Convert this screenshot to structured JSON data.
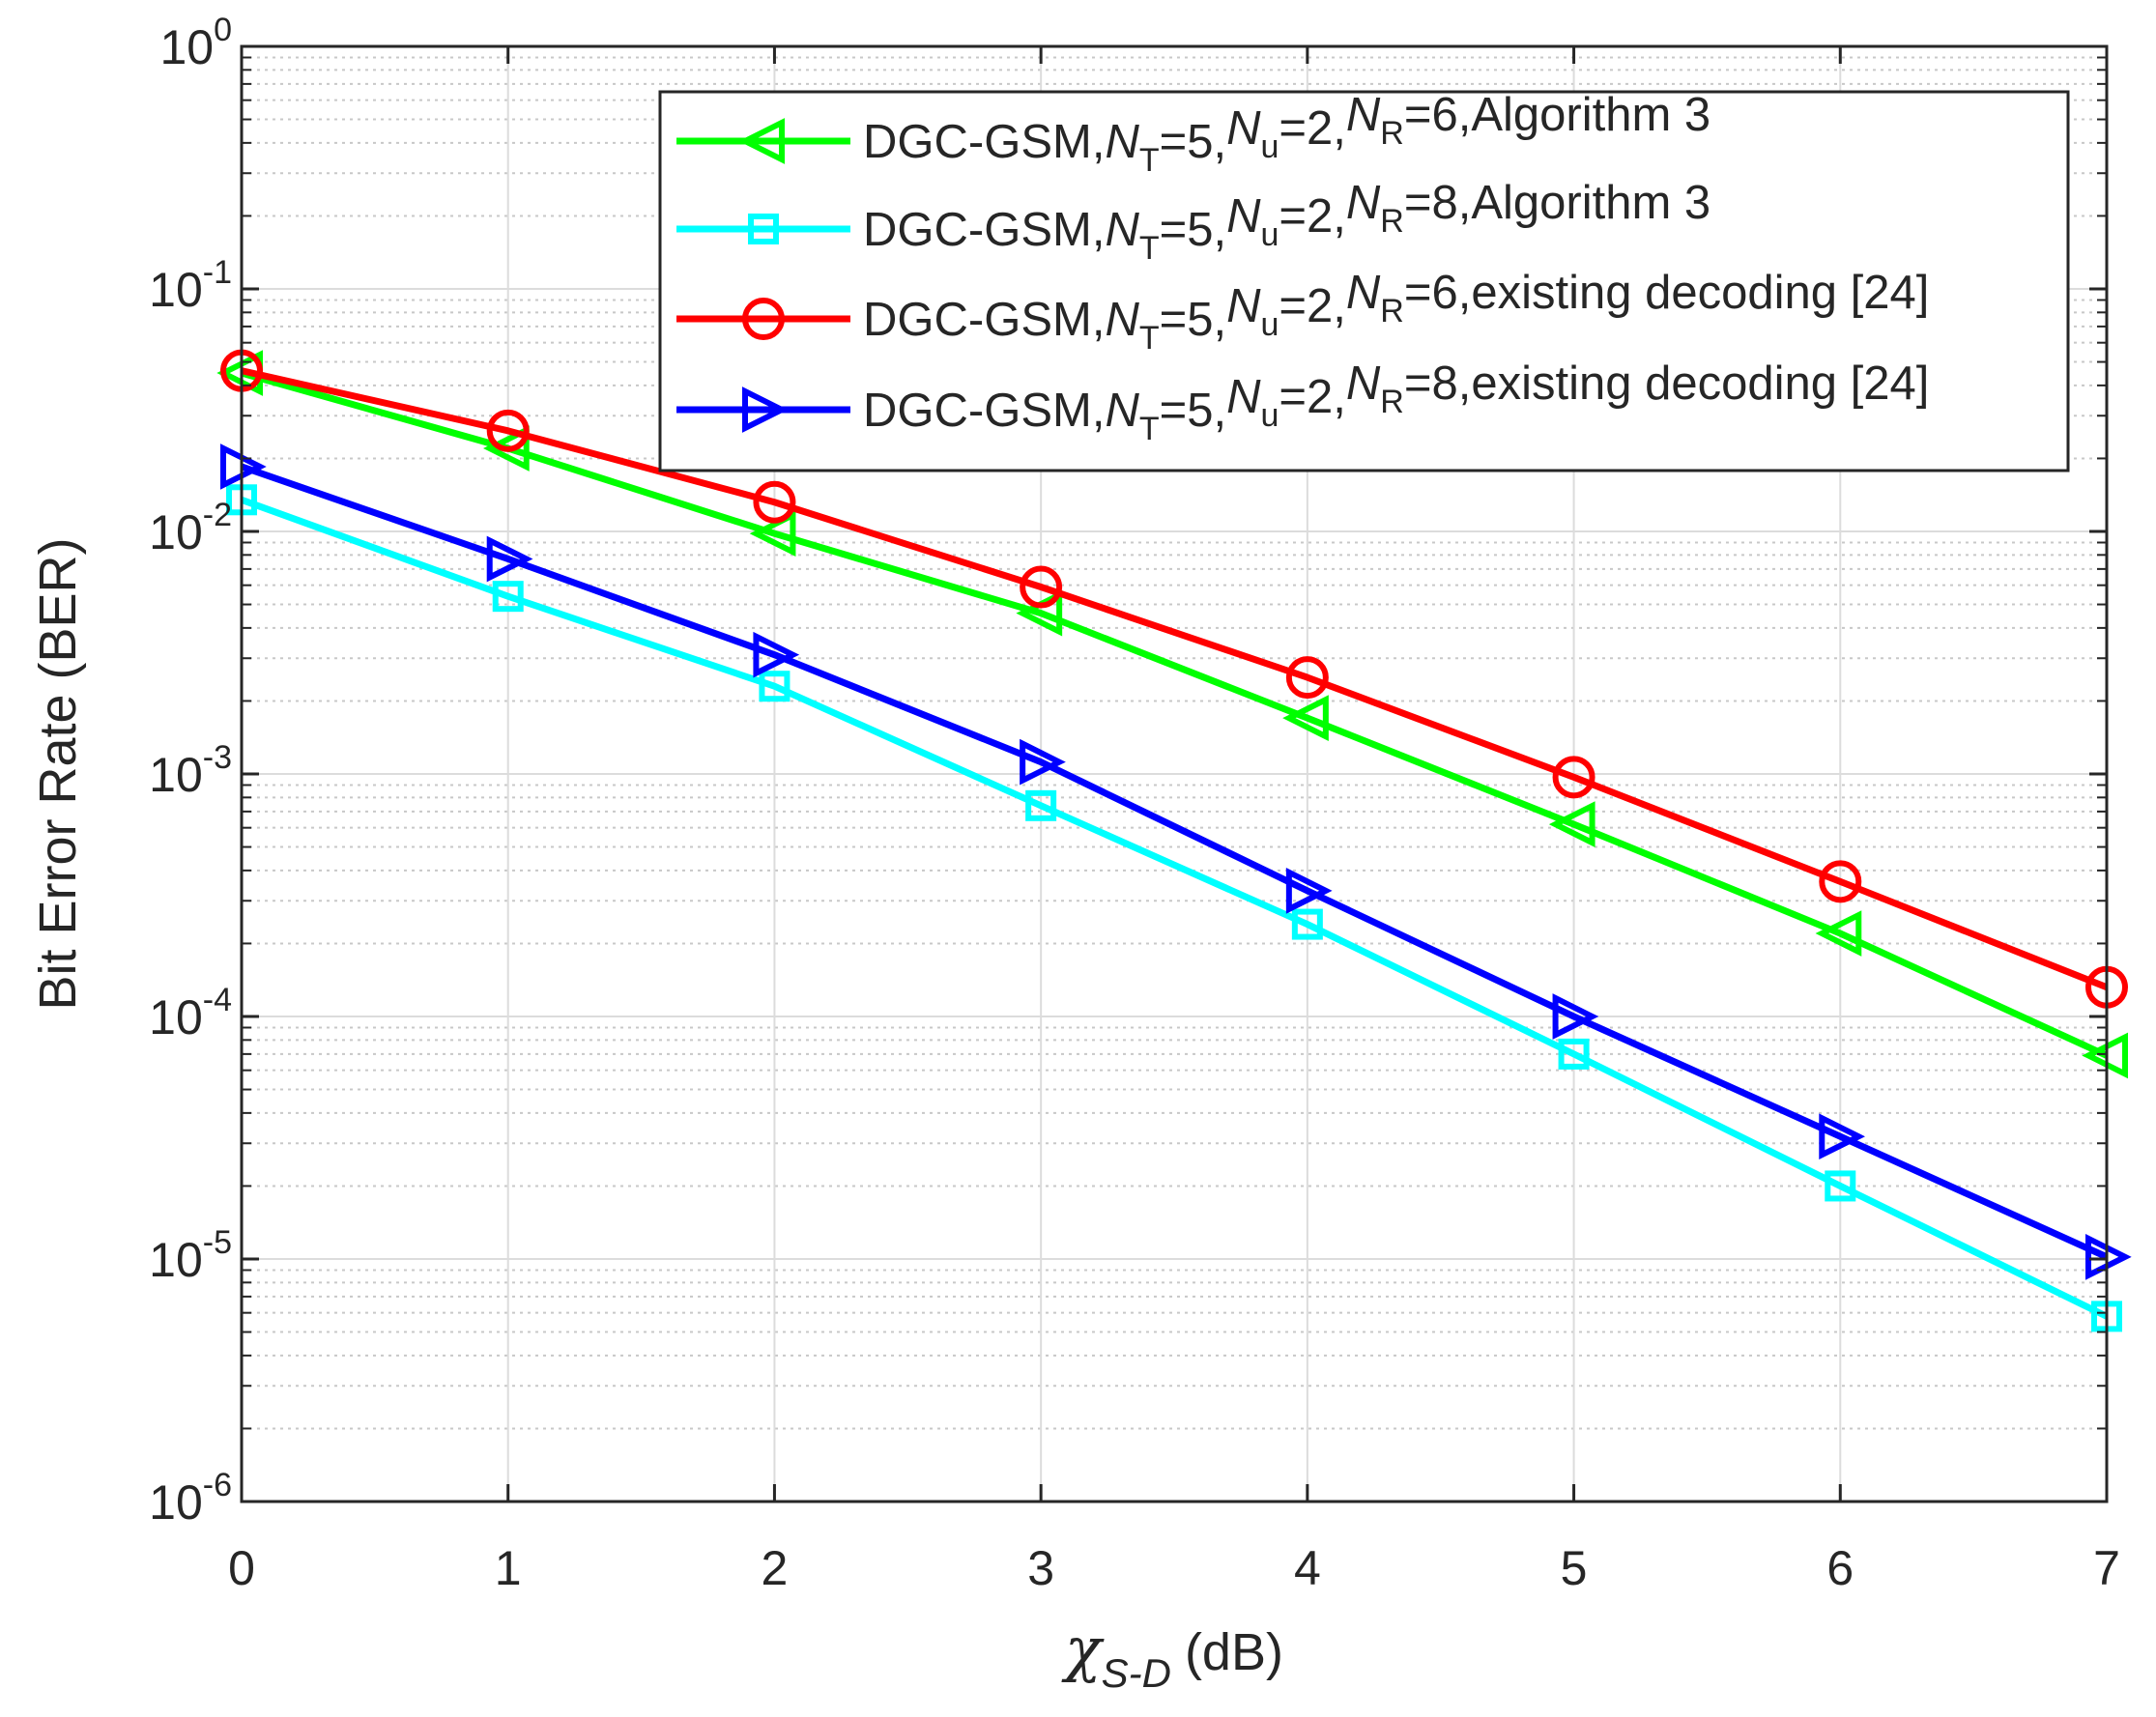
{
  "chart_data": {
    "type": "line",
    "y_scale": "log",
    "xlabel_symbol": "χ",
    "xlabel_subscript": "S-D",
    "xlabel_unit": "(dB)",
    "ylabel": "Bit Error Rate (BER)",
    "xlim": [
      0,
      7
    ],
    "ylim": [
      1e-06,
      1
    ],
    "grid": true,
    "minor_grid": true,
    "legend_position": "top-right",
    "x_ticks": [
      0,
      1,
      2,
      3,
      4,
      5,
      6,
      7
    ],
    "x_tick_labels": [
      "0",
      "1",
      "2",
      "3",
      "4",
      "5",
      "6",
      "7"
    ],
    "y_ticks": [
      {
        "value": 1,
        "base": "10",
        "exp": "0"
      },
      {
        "value": 0.1,
        "base": "10",
        "exp": "-1"
      },
      {
        "value": 0.01,
        "base": "10",
        "exp": "-2"
      },
      {
        "value": 0.001,
        "base": "10",
        "exp": "-3"
      },
      {
        "value": 0.0001,
        "base": "10",
        "exp": "-4"
      },
      {
        "value": 1e-05,
        "base": "10",
        "exp": "-5"
      },
      {
        "value": 1e-06,
        "base": "10",
        "exp": "-6"
      }
    ],
    "x": [
      0,
      1,
      2,
      3,
      4,
      5,
      6,
      7
    ],
    "series": [
      {
        "name": "DGC-GSM,NT=5,Nu=2,NR=6,Algorithm 3",
        "label_parts": [
          "DGC-GSM,",
          "N",
          "T",
          "=5,",
          "N",
          "u",
          "=2,",
          "N",
          "R",
          "=6,Algorithm 3"
        ],
        "color": "#00ff00",
        "marker": "triangle-left",
        "values": [
          0.045,
          0.022,
          0.0098,
          0.0046,
          0.0017,
          0.00062,
          0.00022,
          6.9e-05
        ]
      },
      {
        "name": "DGC-GSM,NT=5,Nu=2,NR=8,Algorithm 3",
        "label_parts": [
          "DGC-GSM,",
          "N",
          "T",
          "=5,",
          "N",
          "u",
          "=2,",
          "N",
          "R",
          "=8,Algorithm 3"
        ],
        "color": "#00ffff",
        "marker": "square",
        "values": [
          0.0135,
          0.0054,
          0.0023,
          0.00074,
          0.00024,
          7e-05,
          2e-05,
          5.8e-06
        ]
      },
      {
        "name": "DGC-GSM,NT=5,Nu=2,NR=6,existing decoding [24]",
        "label_parts": [
          "DGC-GSM,",
          "N",
          "T",
          "=5,",
          "N",
          "u",
          "=2,",
          "N",
          "R",
          "=6,existing decoding [24]"
        ],
        "color": "#ff0000",
        "marker": "circle",
        "values": [
          0.046,
          0.026,
          0.0132,
          0.0059,
          0.0025,
          0.00097,
          0.00036,
          0.000132
        ]
      },
      {
        "name": "DGC-GSM,NT=5,Nu=2,NR=8,existing decoding [24]",
        "label_parts": [
          "DGC-GSM,",
          "N",
          "T",
          "=5,",
          "N",
          "u",
          "=2,",
          "N",
          "R",
          "=8,existing decoding [24]"
        ],
        "color": "#0000ff",
        "marker": "triangle-right",
        "values": [
          0.0185,
          0.0077,
          0.0031,
          0.00112,
          0.00033,
          0.0001,
          3.2e-05,
          1.02e-05
        ]
      }
    ]
  }
}
